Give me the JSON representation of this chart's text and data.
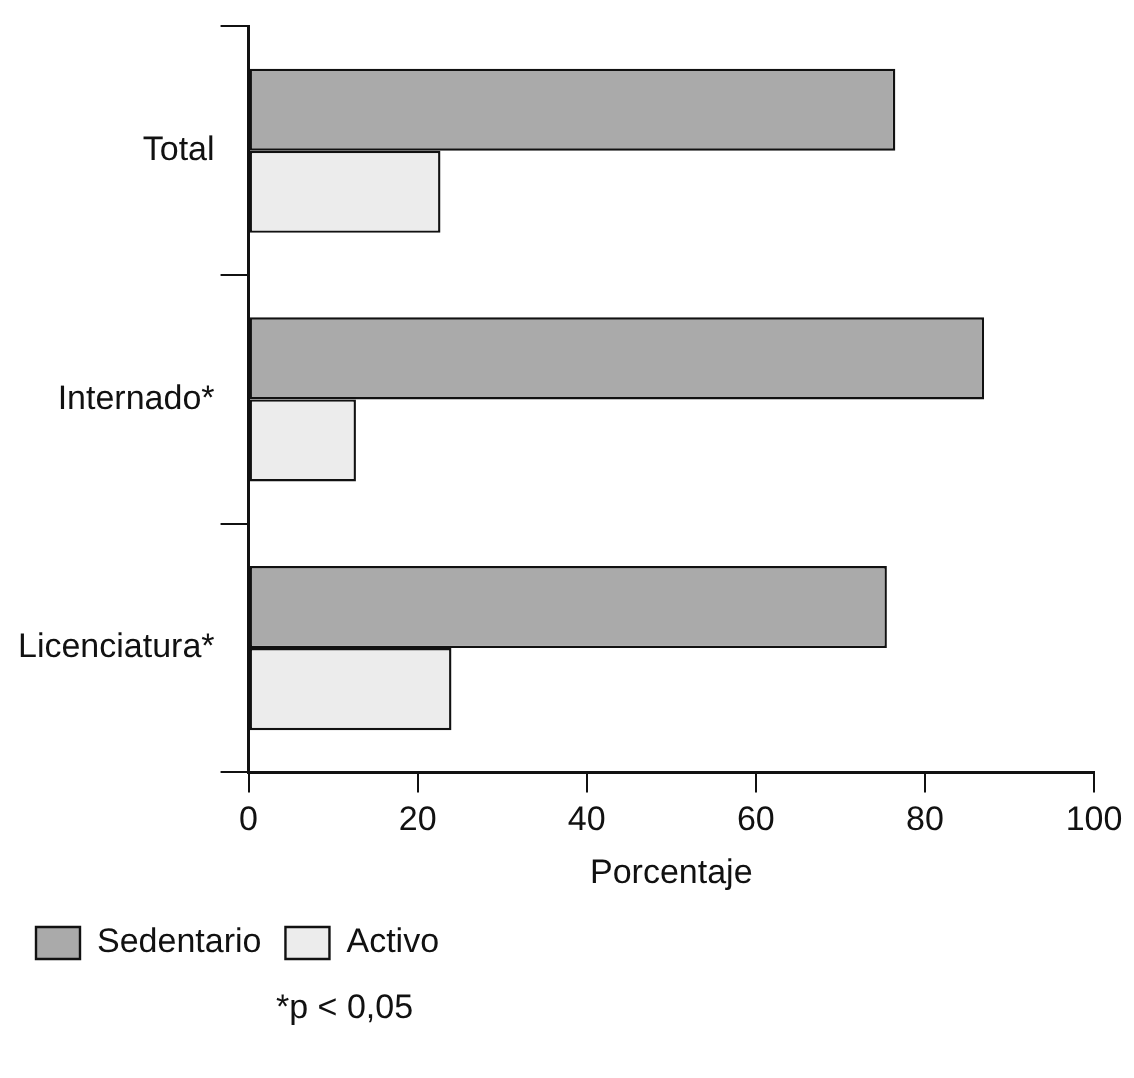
{
  "chart_data": {
    "type": "bar",
    "orientation": "horizontal",
    "xlabel": "Porcentaje",
    "categories": [
      "Total",
      "Internado*",
      "Licenciatura*"
    ],
    "series": [
      {
        "name": "Sedentario",
        "color": "#aaaaaa",
        "values": [
          76.5,
          87,
          75.5
        ]
      },
      {
        "name": "Activo",
        "color": "#ececec",
        "values": [
          22.7,
          12.7,
          24
        ]
      }
    ],
    "xlim": [
      0,
      100
    ],
    "xticks": [
      0,
      20,
      40,
      60,
      80,
      100
    ],
    "grid": false,
    "legend": "bottom",
    "annotations": [
      "*p < 0,05"
    ]
  }
}
